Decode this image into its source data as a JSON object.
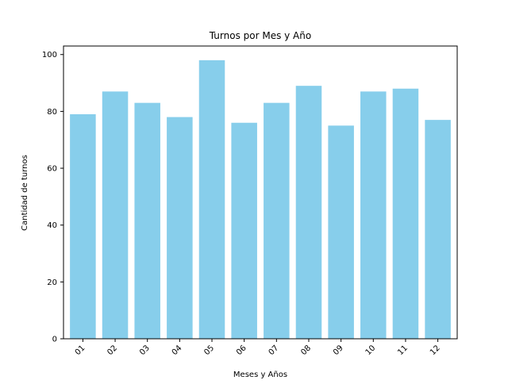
{
  "chart_data": {
    "type": "bar",
    "title": "Turnos por Mes y Año",
    "xlabel": "Meses y Años",
    "ylabel": "Cantidad de turnos",
    "categories": [
      "01",
      "02",
      "03",
      "04",
      "05",
      "06",
      "07",
      "08",
      "09",
      "10",
      "11",
      "12"
    ],
    "values": [
      79,
      87,
      83,
      78,
      98,
      76,
      83,
      89,
      75,
      87,
      88,
      77
    ],
    "ylim": [
      0,
      103
    ],
    "yticks": [
      0,
      20,
      40,
      60,
      80,
      100
    ],
    "bar_color": "#87ceeb",
    "grid": false,
    "legend": false
  }
}
